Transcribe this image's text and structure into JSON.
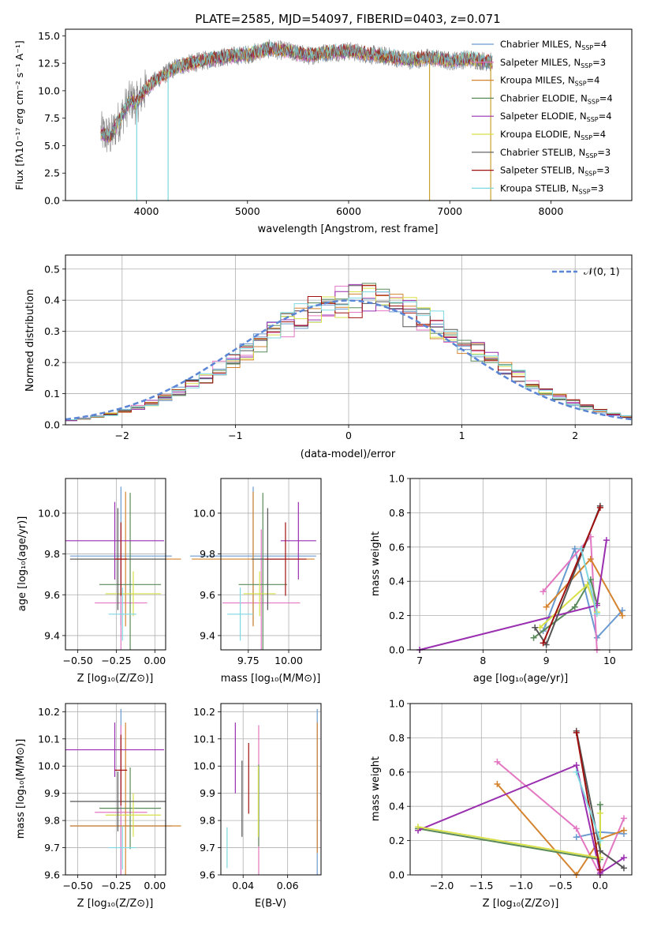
{
  "colors": {
    "chabrier_miles": "#6a9ad0",
    "salpeter_miles": "#e377c2",
    "kroupa_miles": "#d4842f",
    "chabrier_elodie": "#5a8a5a",
    "salpeter_elodie": "#9a2fb0",
    "kroupa_elodie": "#d8e04a",
    "chabrier_stelib": "#555555",
    "salpeter_stelib": "#a01010",
    "kroupa_stelib": "#7dd8e0",
    "normal_fit": "#5b86d6",
    "grid": "#b0b0b0"
  },
  "chart_data": [
    {
      "id": "spectrum",
      "type": "line",
      "title": "PLATE=2585, MJD=54097, FIBERID=0403, z=0.071",
      "xlabel": "wavelength [Angstrom, rest frame]",
      "ylabel": "Flux [fλ10⁻¹⁷ erg cm⁻² s⁻¹ A⁻¹]",
      "xlim": [
        3200,
        8800
      ],
      "ylim": [
        0,
        15.6
      ],
      "xticks": [
        "4000",
        "5000",
        "6000",
        "7000",
        "8000"
      ],
      "yticks": [
        "0.0",
        "2.5",
        "5.0",
        "7.5",
        "10.0",
        "12.5",
        "15.0"
      ],
      "legend_position": "right",
      "legend": [
        "Chabrier MILES, N_SSP=4",
        "Salpeter MILES, N_SSP=3",
        "Kroupa MILES, N_SSP=4",
        "Chabrier ELODIE, N_SSP=4",
        "Salpeter ELODIE, N_SSP=4",
        "Kroupa ELODIE, N_SSP=4",
        "Chabrier STELIB, N_SSP=3",
        "Salpeter STELIB, N_SSP=3",
        "Kroupa STELIB, N_SSP=3"
      ],
      "continuum": {
        "x": [
          3550,
          3650,
          3700,
          3750,
          3800,
          3850,
          3900,
          3950,
          4000,
          4100,
          4200,
          4300,
          4500,
          4700,
          4900,
          5000,
          5200,
          5400,
          5600,
          5800,
          6000,
          6200,
          6400,
          6600,
          6800,
          7000,
          7200,
          7400
        ],
        "y": [
          6.2,
          5.8,
          6.8,
          7.6,
          8.5,
          9.2,
          8.8,
          9.6,
          10.2,
          11.0,
          11.6,
          12.2,
          12.6,
          13.0,
          13.2,
          13.3,
          13.8,
          13.6,
          13.2,
          13.5,
          13.6,
          13.3,
          13.1,
          12.8,
          13.0,
          12.7,
          12.9,
          12.6
        ]
      },
      "grid": false
    },
    {
      "id": "residuals",
      "type": "histogram",
      "xlabel": "(data-model)/error",
      "ylabel": "Normed distribution",
      "xlim": [
        -2.5,
        2.5
      ],
      "ylim": [
        0,
        0.545
      ],
      "xticks": [
        "−2",
        "−1",
        "0",
        "1",
        "2"
      ],
      "yticks": [
        "0.0",
        "0.1",
        "0.2",
        "0.3",
        "0.4",
        "0.5"
      ],
      "fit_label": "𝒩(0, 1)",
      "bin_width": 0.12,
      "grid": true
    },
    {
      "id": "age_vs_Z",
      "type": "errorbar",
      "xlabel": "Z [log₁₀(Z/Z⊙)]",
      "ylabel": "age  [log₁₀(age/yr)]",
      "xlim": [
        -0.58,
        0.07
      ],
      "ylim": [
        9.33,
        10.17
      ],
      "xticks": [
        "−0.50",
        "−0.25",
        "0.00"
      ],
      "yticks": [
        "9.4",
        "9.6",
        "9.8",
        "10.0"
      ],
      "points": [
        {
          "x": -0.22,
          "xe": 0.33,
          "y": 9.79,
          "ye": 0.34
        },
        {
          "x": -0.22,
          "xe": 0.17,
          "y": 9.56,
          "ye": 0.36
        },
        {
          "x": -0.19,
          "xe": 0.36,
          "y": 9.775,
          "ye": 0.33
        },
        {
          "x": -0.16,
          "xe": 0.2,
          "y": 9.65,
          "ye": 0.45
        },
        {
          "x": -0.26,
          "xe": 0.32,
          "y": 9.865,
          "ye": 0.19
        },
        {
          "x": -0.14,
          "xe": 0.18,
          "y": 9.605,
          "ye": 0.11
        },
        {
          "x": -0.24,
          "xe": 0.31,
          "y": 9.775,
          "ye": 0.25
        },
        {
          "x": -0.22,
          "xe": 0.04,
          "y": 9.775,
          "ye": 0.18
        },
        {
          "x": -0.21,
          "xe": 0.09,
          "y": 9.505,
          "ye": 0.13
        }
      ],
      "grid": true
    },
    {
      "id": "age_vs_mass",
      "type": "errorbar",
      "xlabel": "mass [log₁₀(M/M⊙)]",
      "ylabel": "",
      "xlim": [
        9.58,
        10.2
      ],
      "ylim": [
        9.33,
        10.17
      ],
      "xticks": [
        "9.75",
        "10.00"
      ],
      "yticks": [
        "9.4",
        "9.6",
        "9.8",
        "10.0"
      ],
      "points": [
        {
          "x": 9.78,
          "xe": 0.39,
          "y": 9.79,
          "ye": 0.34
        },
        {
          "x": 9.83,
          "xe": 0.24,
          "y": 9.56,
          "ye": 0.36
        },
        {
          "x": 9.78,
          "xe": 0.38,
          "y": 9.775,
          "ye": 0.33
        },
        {
          "x": 9.84,
          "xe": 0.15,
          "y": 9.65,
          "ye": 0.45
        },
        {
          "x": 10.06,
          "xe": 0.11,
          "y": 9.865,
          "ye": 0.19
        },
        {
          "x": 9.82,
          "xe": 0.1,
          "y": 9.605,
          "ye": 0.11
        },
        {
          "x": 9.87,
          "xe": 0.1,
          "y": 9.775,
          "ye": 0.25
        },
        {
          "x": 9.98,
          "xe": 0.13,
          "y": 9.775,
          "ye": 0.18
        },
        {
          "x": 9.7,
          "xe": 0.08,
          "y": 9.505,
          "ye": 0.13
        }
      ],
      "grid": true
    },
    {
      "id": "mass_weight_vs_age",
      "type": "line",
      "xlabel": "age  [log₁₀(age/yr)]",
      "ylabel": "mass weight",
      "xlim": [
        6.85,
        10.35
      ],
      "ylim": [
        0,
        1
      ],
      "xticks": [
        "7",
        "8",
        "9",
        "10"
      ],
      "yticks": [
        "0.0",
        "0.2",
        "0.4",
        "0.6",
        "0.8",
        "1.0"
      ],
      "series": [
        {
          "x": [
            8.95,
            9.45,
            9.8,
            10.2
          ],
          "y": [
            0.11,
            0.59,
            0.07,
            0.23
          ]
        },
        {
          "x": [
            8.95,
            9.7,
            9.8
          ],
          "y": [
            0.34,
            0.66,
            0.0
          ]
        },
        {
          "x": [
            9.0,
            9.7,
            10.2
          ],
          "y": [
            0.25,
            0.53,
            0.2
          ]
        },
        {
          "x": [
            8.8,
            9.45,
            9.7,
            9.8
          ],
          "y": [
            0.07,
            0.25,
            0.41,
            0.27
          ]
        },
        {
          "x": [
            7.0,
            9.8,
            9.95
          ],
          "y": [
            0.0,
            0.26,
            0.64
          ]
        },
        {
          "x": [
            8.9,
            9.65,
            9.8
          ],
          "y": [
            0.13,
            0.38,
            0.22
          ]
        },
        {
          "x": [
            8.82,
            9.0,
            9.85
          ],
          "y": [
            0.13,
            0.03,
            0.84
          ]
        },
        {
          "x": [
            8.95,
            9.85
          ],
          "y": [
            0.04,
            0.83
          ]
        },
        {
          "x": [
            9.55,
            9.8
          ],
          "y": [
            0.59,
            0.21
          ]
        }
      ],
      "grid": true
    },
    {
      "id": "mass_vs_Z",
      "type": "errorbar",
      "xlabel": "Z [log₁₀(Z/Z⊙)]",
      "ylabel": "mass [log₁₀(M/M⊙)]",
      "xlim": [
        -0.58,
        0.07
      ],
      "ylim": [
        9.6,
        10.23
      ],
      "xticks": [
        "−0.50",
        "−0.25",
        "0.00"
      ],
      "yticks": [
        "9.6",
        "9.7",
        "9.8",
        "9.9",
        "10.0",
        "10.1",
        "10.2"
      ],
      "points": [
        {
          "x": -0.22,
          "xe": 0.33,
          "y": 9.78,
          "ye": 0.43
        },
        {
          "x": -0.22,
          "xe": 0.17,
          "y": 9.83,
          "ye": 0.32
        },
        {
          "x": -0.19,
          "xe": 0.36,
          "y": 9.78,
          "ye": 0.38
        },
        {
          "x": -0.16,
          "xe": 0.2,
          "y": 9.845,
          "ye": 0.15
        },
        {
          "x": -0.26,
          "xe": 0.32,
          "y": 10.06,
          "ye": 0.1
        },
        {
          "x": -0.14,
          "xe": 0.18,
          "y": 9.82,
          "ye": 0.08
        },
        {
          "x": -0.24,
          "xe": 0.31,
          "y": 9.87,
          "ye": 0.11
        },
        {
          "x": -0.22,
          "xe": 0.04,
          "y": 9.985,
          "ye": 0.13
        },
        {
          "x": -0.21,
          "xe": 0.09,
          "y": 9.7,
          "ye": 0.08
        }
      ],
      "grid": true
    },
    {
      "id": "mass_vs_ebv",
      "type": "errorbar",
      "xlabel": "E(B-V)",
      "ylabel": "",
      "xlim": [
        0.03,
        0.075
      ],
      "ylim": [
        9.6,
        10.23
      ],
      "xticks": [
        "0.04",
        "0.06"
      ],
      "yticks": [
        "9.6",
        "9.7",
        "9.8",
        "9.9",
        "10.0",
        "10.1",
        "10.2"
      ],
      "points": [
        {
          "x": 0.0733,
          "xe": 0,
          "y": 9.78,
          "ye": 0.43
        },
        {
          "x": 0.047,
          "xe": 0,
          "y": 9.83,
          "ye": 0.32
        },
        {
          "x": 0.0733,
          "xe": 0,
          "y": 9.92,
          "ye": 0.24
        },
        {
          "x": 0.047,
          "xe": 0,
          "y": 9.855,
          "ye": 0.15
        },
        {
          "x": 0.0365,
          "xe": 0,
          "y": 10.03,
          "ye": 0.13
        },
        {
          "x": 0.0468,
          "xe": 0,
          "y": 9.87,
          "ye": 0.13
        },
        {
          "x": 0.0395,
          "xe": 0,
          "y": 9.88,
          "ye": 0.14
        },
        {
          "x": 0.0425,
          "xe": 0,
          "y": 9.955,
          "ye": 0.13
        },
        {
          "x": 0.0328,
          "xe": 0,
          "y": 9.7,
          "ye": 0.075
        }
      ],
      "grid": true
    },
    {
      "id": "mass_weight_vs_Z",
      "type": "line",
      "xlabel": "Z [log₁₀(Z/Z⊙)]",
      "ylabel": "mass weight",
      "xlim": [
        -2.4,
        0.4
      ],
      "ylim": [
        0,
        1
      ],
      "xticks": [
        "−2.0",
        "−1.5",
        "−1.0",
        "−0.5",
        "0.0"
      ],
      "yticks": [
        "0.0",
        "0.2",
        "0.4",
        "0.6",
        "0.8",
        "1.0"
      ],
      "series": [
        {
          "x": [
            -0.3,
            0.0,
            0.3
          ],
          "y": [
            0.22,
            0.25,
            0.24
          ]
        },
        {
          "x": [
            -1.3,
            -0.3,
            0.0,
            0.3
          ],
          "y": [
            0.66,
            0.27,
            0.0,
            0.33
          ]
        },
        {
          "x": [
            -1.3,
            -0.3,
            0.0,
            0.3
          ],
          "y": [
            0.53,
            0.0,
            0.21,
            0.26
          ]
        },
        {
          "x": [
            -2.3,
            0.0,
            0.0
          ],
          "y": [
            0.27,
            0.09,
            0.41
          ]
        },
        {
          "x": [
            -2.3,
            -0.3,
            0.0,
            0.3
          ],
          "y": [
            0.26,
            0.64,
            0.01,
            0.1
          ]
        },
        {
          "x": [
            -2.3,
            0.0,
            0.0
          ],
          "y": [
            0.28,
            0.1,
            0.36
          ]
        },
        {
          "x": [
            -0.3,
            0.0,
            0.3
          ],
          "y": [
            0.84,
            0.14,
            0.04
          ]
        },
        {
          "x": [
            -0.3,
            0.0
          ],
          "y": [
            0.83,
            0.03
          ]
        },
        {
          "x": [
            -0.3,
            0.0
          ],
          "y": [
            0.6,
            0.2
          ]
        }
      ],
      "grid": true
    }
  ]
}
